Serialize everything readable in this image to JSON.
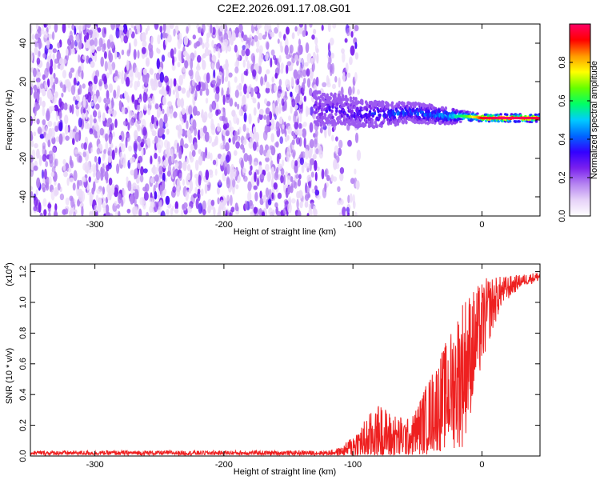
{
  "title": "C2E2.2026.091.17.08.G01",
  "colors": {
    "spectrogram_cmap": [
      "#ffffff",
      "#e6d2f8",
      "#b583f1",
      "#7a20ee",
      "#3300ff",
      "#0066ff",
      "#00ccff",
      "#00ff66",
      "#66ff00",
      "#ffff00",
      "#ff9900",
      "#ff0000",
      "#ff0066"
    ],
    "snr_line": "#ee2020"
  },
  "chart_data": [
    {
      "type": "heatmap",
      "name": "spectrogram",
      "xlabel": "Height of straight line (km)",
      "ylabel": "Frequency (Hz)",
      "xlim": [
        -350,
        45
      ],
      "ylim": [
        -50,
        50
      ],
      "xticks": [
        -300,
        -200,
        -100,
        0
      ],
      "xtick_labels": [
        "-300",
        "-200",
        "-100",
        "0"
      ],
      "yticks": [
        -40,
        -20,
        0,
        20,
        40
      ],
      "ytick_labels": [
        "-40",
        "-20",
        "0",
        "20",
        "40"
      ],
      "noise_region": {
        "x_range": [
          -350,
          -110
        ],
        "freq_range": [
          -50,
          50
        ],
        "typical_amplitude": 0.05
      },
      "signal_trace": [
        {
          "x": -130,
          "freq": 6,
          "spread": 9,
          "amplitude": 0.25
        },
        {
          "x": -110,
          "freq": 5,
          "spread": 8,
          "amplitude": 0.3
        },
        {
          "x": -90,
          "freq": 3,
          "spread": 7,
          "amplitude": 0.33
        },
        {
          "x": -70,
          "freq": 3,
          "spread": 6,
          "amplitude": 0.38
        },
        {
          "x": -55,
          "freq": 4,
          "spread": 5,
          "amplitude": 0.4
        },
        {
          "x": -40,
          "freq": 3,
          "spread": 5,
          "amplitude": 0.42
        },
        {
          "x": -25,
          "freq": 2,
          "spread": 4,
          "amplitude": 0.5
        },
        {
          "x": -15,
          "freq": 2,
          "spread": 3,
          "amplitude": 0.6
        },
        {
          "x": -5,
          "freq": 1.5,
          "spread": 2,
          "amplitude": 0.8
        },
        {
          "x": 0,
          "freq": 1,
          "spread": 2,
          "amplitude": 0.95
        },
        {
          "x": 15,
          "freq": 1,
          "spread": 2,
          "amplitude": 1.0
        },
        {
          "x": 45,
          "freq": 1,
          "spread": 2,
          "amplitude": 0.97
        }
      ],
      "colorbar": {
        "label": "Normalized spectral amplitude",
        "range": [
          0,
          1
        ],
        "ticks": [
          0.0,
          0.2,
          0.4,
          0.6,
          0.8
        ],
        "tick_labels": [
          "0.0",
          "0.2",
          "0.4",
          "0.6",
          "0.8"
        ]
      }
    },
    {
      "type": "line",
      "name": "snr",
      "xlabel": "Height of straight line (km)",
      "ylabel": "SNR (10 * v/v)",
      "scale_label": "(x10",
      "scale_exponent": "4",
      "scale_close": ")",
      "xlim": [
        -350,
        45
      ],
      "ylim": [
        0,
        1.25
      ],
      "xticks": [
        -300,
        -200,
        -100,
        0
      ],
      "xtick_labels": [
        "-300",
        "-200",
        "-100",
        "0"
      ],
      "yticks": [
        0.0,
        0.2,
        0.4,
        0.6,
        0.8,
        1.0,
        1.2
      ],
      "ytick_labels": [
        "0.0",
        "0.2",
        "0.4",
        "0.6",
        "0.8",
        "1.0",
        "1.2"
      ],
      "series": [
        {
          "name": "SNR",
          "envelope": [
            {
              "x": -350,
              "base": 0.02,
              "amp": 0.015
            },
            {
              "x": -120,
              "base": 0.02,
              "amp": 0.015
            },
            {
              "x": -108,
              "base": 0.03,
              "amp": 0.03
            },
            {
              "x": -95,
              "base": 0.08,
              "amp": 0.12
            },
            {
              "x": -80,
              "base": 0.15,
              "amp": 0.2
            },
            {
              "x": -70,
              "base": 0.12,
              "amp": 0.16
            },
            {
              "x": -55,
              "base": 0.12,
              "amp": 0.12
            },
            {
              "x": -45,
              "base": 0.22,
              "amp": 0.22
            },
            {
              "x": -35,
              "base": 0.32,
              "amp": 0.3
            },
            {
              "x": -25,
              "base": 0.42,
              "amp": 0.38
            },
            {
              "x": -15,
              "base": 0.55,
              "amp": 0.5
            },
            {
              "x": -5,
              "base": 0.75,
              "amp": 0.35
            },
            {
              "x": 5,
              "base": 0.95,
              "amp": 0.22
            },
            {
              "x": 15,
              "base": 1.07,
              "amp": 0.1
            },
            {
              "x": 30,
              "base": 1.14,
              "amp": 0.04
            },
            {
              "x": 45,
              "base": 1.17,
              "amp": 0.03
            }
          ]
        }
      ]
    }
  ]
}
